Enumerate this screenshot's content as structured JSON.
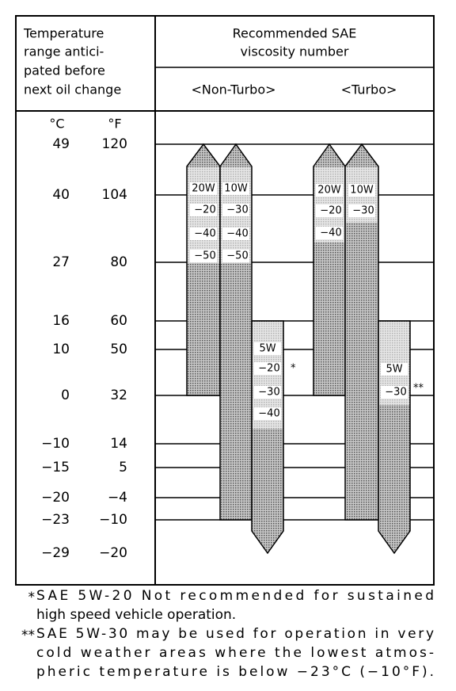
{
  "header": {
    "left": [
      "Temperature",
      "range antici-",
      "pated before",
      "next oil change"
    ],
    "right_title": [
      "Recommended SAE",
      "viscosity number"
    ],
    "groups": [
      "<Non-Turbo>",
      "<Turbo>"
    ]
  },
  "units": {
    "celsius": "°C",
    "fahrenheit": "°F"
  },
  "temperatures": [
    [
      "49",
      "120"
    ],
    [
      "40",
      "104"
    ],
    [
      "27",
      "80"
    ],
    [
      "16",
      "60"
    ],
    [
      "10",
      "50"
    ],
    [
      "0",
      "32"
    ],
    [
      "−10",
      "14"
    ],
    [
      "−15",
      "5"
    ],
    [
      "−20",
      "−4"
    ],
    [
      "−23",
      "−10"
    ],
    [
      "−29",
      "−20"
    ]
  ],
  "oils": {
    "non_turbo": [
      {
        "labels": [
          "20W",
          "−20",
          "−40",
          "−50"
        ]
      },
      {
        "labels": [
          "10W",
          "−30",
          "−40",
          "−50"
        ]
      },
      {
        "labels": [
          "5W",
          "−20",
          "−30",
          "−40"
        ],
        "note": "*"
      }
    ],
    "turbo": [
      {
        "labels": [
          "20W",
          "−20",
          "−40"
        ]
      },
      {
        "labels": [
          "10W",
          "−30"
        ]
      },
      {
        "labels": [
          "5W",
          "−30"
        ],
        "note": "**"
      }
    ]
  },
  "footnotes": [
    {
      "mark": "*",
      "lines": [
        "SAE 5W-20 Not recommended for sustained",
        "high speed vehicle operation."
      ]
    },
    {
      "mark": "**",
      "lines": [
        "SAE 5W-30 may be used for operation in very",
        "cold weather areas where the lowest atmos-",
        "pheric temperature is below −23°C (−10°F)."
      ]
    }
  ]
}
